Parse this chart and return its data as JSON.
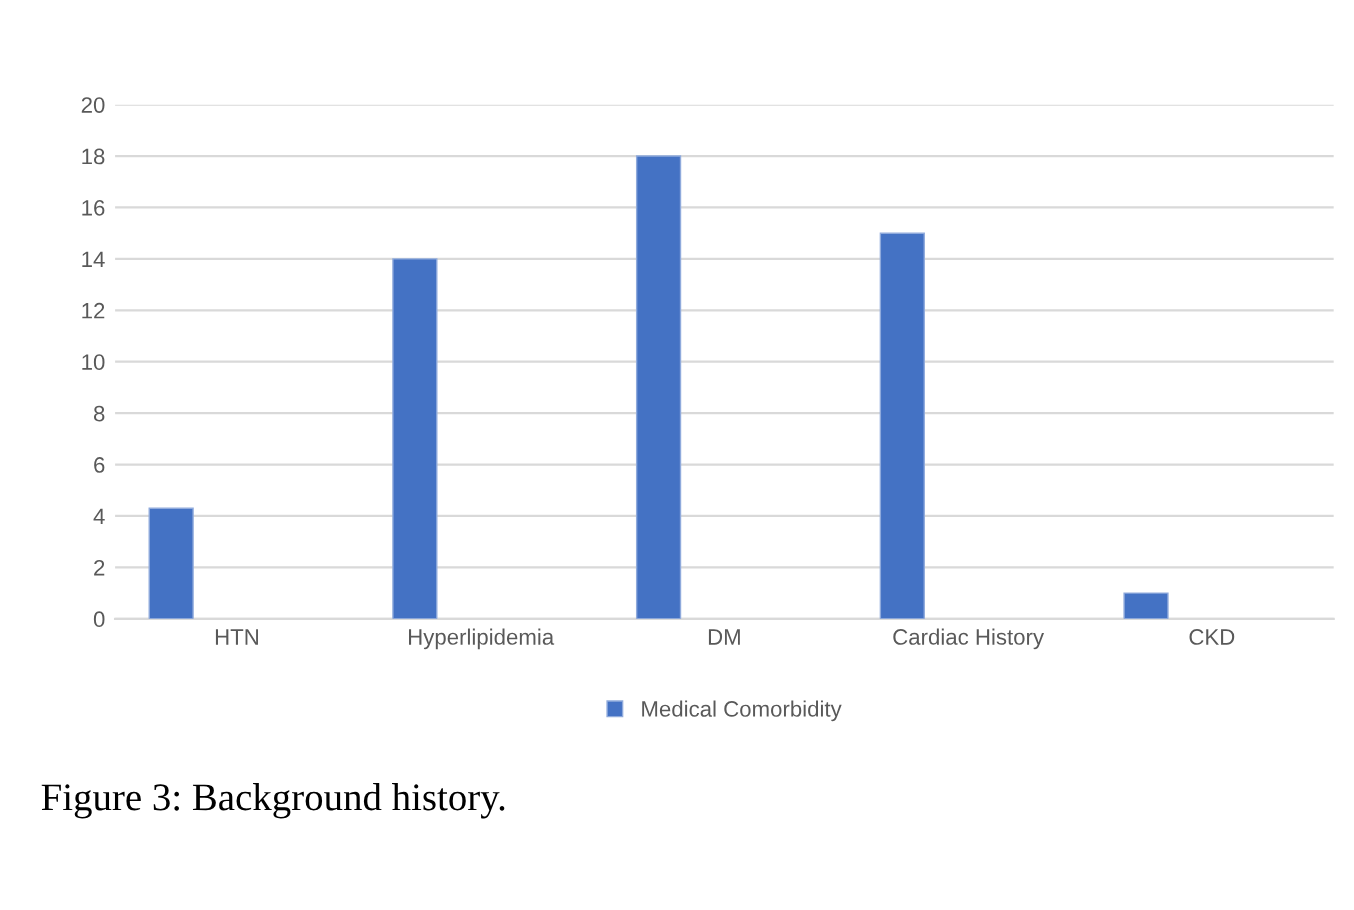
{
  "chart_data": {
    "type": "bar",
    "categories": [
      "HTN",
      "Hyperlipidemia",
      "DM",
      "Cardiac History",
      "CKD"
    ],
    "series": [
      {
        "name": "Medical Comorbidity",
        "color": "#4472c4",
        "values": [
          4.3,
          14,
          18,
          15,
          1
        ]
      }
    ],
    "ylim": [
      0,
      20
    ],
    "yticks": [
      0,
      2,
      4,
      6,
      8,
      10,
      12,
      14,
      16,
      18,
      20
    ],
    "grid": "y",
    "legend": "bottom",
    "annotations": [
      "Figure 3: Background history."
    ]
  }
}
